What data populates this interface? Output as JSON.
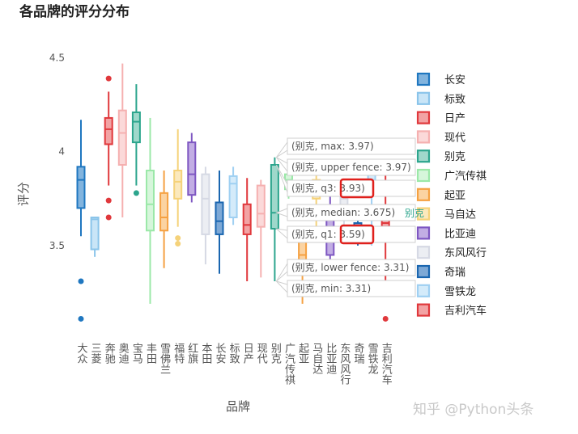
{
  "chart_data": {
    "type": "box",
    "title": "各品牌的评分分布",
    "xlabel": "品牌",
    "ylabel": "评分",
    "ylim": [
      3.0,
      4.55
    ],
    "yticks": [
      3.5,
      4,
      4.5
    ],
    "ytick_labels": [
      "3.5",
      "4",
      "4.5"
    ],
    "categories": [
      "大众",
      "三菱",
      "奔驰",
      "奥迪",
      "宝马",
      "丰田",
      "雪佛兰",
      "福特",
      "红旗",
      "本田",
      "长安",
      "标致",
      "日产",
      "现代",
      "别克",
      "广汽传祺",
      "起亚",
      "马自达",
      "比亚迪",
      "东风风行",
      "奇瑞",
      "雪铁龙",
      "吉利汽车"
    ],
    "series": [
      {
        "name": "长安",
        "color": "#1f77c0",
        "fill": "#82b4de",
        "x": 0,
        "min": 3.55,
        "q1": 3.7,
        "median": 3.85,
        "q3": 3.92,
        "max": 4.17,
        "outliers": [
          3.31,
          3.11
        ]
      },
      {
        "name": "标致",
        "color": "#8ac4ea",
        "fill": "#c9e5f7",
        "x": 1,
        "min": 3.44,
        "q1": 3.48,
        "median": 3.64,
        "q3": 3.65,
        "max": 3.65,
        "outliers": []
      },
      {
        "name": "日产",
        "color": "#e0383c",
        "fill": "#f2a3a4",
        "x": 2,
        "min": 3.82,
        "q1": 4.04,
        "median": 4.12,
        "q3": 4.18,
        "max": 4.32,
        "outliers": [
          4.39,
          3.74,
          3.65
        ]
      },
      {
        "name": "现代",
        "color": "#f5b0b0",
        "fill": "#fbd9d9",
        "x": 3,
        "min": 3.65,
        "q1": 3.93,
        "median": 4.1,
        "q3": 4.22,
        "max": 4.47,
        "outliers": []
      },
      {
        "name": "别克",
        "color": "#2ca58d",
        "fill": "#9fd8cb",
        "x": 4,
        "min": 3.82,
        "q1": 4.05,
        "median": 4.16,
        "q3": 4.21,
        "max": 4.36,
        "outliers": [
          3.78
        ]
      },
      {
        "name": "广汽传祺",
        "color": "#9be8a8",
        "fill": "#d6f6db",
        "x": 5,
        "min": 3.19,
        "q1": 3.58,
        "median": 3.72,
        "q3": 3.9,
        "max": 4.18,
        "outliers": []
      },
      {
        "name": "起亚",
        "color": "#f5a142",
        "fill": "#fbd3a2",
        "x": 6,
        "min": 3.38,
        "q1": 3.58,
        "median": 3.65,
        "q3": 3.78,
        "max": 3.9,
        "outliers": []
      },
      {
        "name": "马自达",
        "color": "#f5d27a",
        "fill": "#fbe9bd",
        "x": 7,
        "min": 3.6,
        "q1": 3.75,
        "median": 3.84,
        "q3": 3.9,
        "max": 4.12,
        "outliers": [
          3.54,
          3.51
        ]
      },
      {
        "name": "比亚迪",
        "color": "#7e57c2",
        "fill": "#c2ade4",
        "x": 8,
        "min": 3.73,
        "q1": 3.77,
        "median": 3.88,
        "q3": 4.05,
        "max": 4.1,
        "outliers": []
      },
      {
        "name": "东风风行",
        "color": "#d6d9e4",
        "fill": "#eceef3",
        "x": 9,
        "min": 3.4,
        "q1": 3.56,
        "median": 3.75,
        "q3": 3.88,
        "max": 3.92,
        "outliers": []
      },
      {
        "name": "奇瑞",
        "color": "#1a66b0",
        "fill": "#7ea9d6",
        "x": 10,
        "min": 3.35,
        "q1": 3.56,
        "median": 3.63,
        "q3": 3.73,
        "max": 3.9,
        "outliers": []
      },
      {
        "name": "雪铁龙",
        "color": "#9fd0f2",
        "fill": "#d4ebfa",
        "x": 11,
        "min": 3.61,
        "q1": 3.65,
        "median": 3.83,
        "q3": 3.87,
        "max": 3.92,
        "outliers": []
      },
      {
        "name": "吉利汽车",
        "color": "#e0383c",
        "fill": "#f2a3a4",
        "x": 12,
        "min": 3.31,
        "q1": 3.56,
        "median": 3.61,
        "q3": 3.72,
        "max": 3.86,
        "outliers": []
      },
      {
        "name": "",
        "color": "#f5b0b0",
        "fill": "#fbd9d9",
        "x": 13,
        "min": 3.33,
        "q1": 3.6,
        "median": 3.67,
        "q3": 3.82,
        "max": 3.85,
        "outliers": []
      },
      {
        "name": "",
        "color": "#2ca58d",
        "fill": "#9fd8cb",
        "x": 14,
        "min": 3.31,
        "q1": 3.59,
        "median": 3.675,
        "q3": 3.93,
        "max": 3.97,
        "outliers": []
      },
      {
        "name": "",
        "color": "#9be8a8",
        "fill": "#d6f6db",
        "x": 15,
        "min": 3.75,
        "q1": 3.8,
        "median": 3.85,
        "q3": 3.88,
        "max": 3.9,
        "outliers": []
      },
      {
        "name": "",
        "color": "#f5a142",
        "fill": "#fbd3a2",
        "x": 16,
        "min": 3.19,
        "q1": 3.4,
        "median": 3.45,
        "q3": 3.52,
        "max": 3.6,
        "outliers": []
      },
      {
        "name": "",
        "color": "#f5d27a",
        "fill": "#fbe9bd",
        "x": 17,
        "min": 3.6,
        "q1": 3.75,
        "median": 3.8,
        "q3": 3.85,
        "max": 3.9,
        "outliers": []
      },
      {
        "name": "",
        "color": "#7e57c2",
        "fill": "#c2ade4",
        "x": 18,
        "min": 3.4,
        "q1": 3.45,
        "median": 3.6,
        "q3": 3.7,
        "max": 3.8,
        "outliers": []
      },
      {
        "name": "",
        "color": "#d6d9e4",
        "fill": "#eceef3",
        "x": 19,
        "min": 3.6,
        "q1": 3.7,
        "median": 3.75,
        "q3": 3.8,
        "max": 3.85,
        "outliers": []
      },
      {
        "name": "",
        "color": "#1a66b0",
        "fill": "#7ea9d6",
        "x": 20,
        "min": 3.5,
        "q1": 3.56,
        "median": 3.6,
        "q3": 3.62,
        "max": 3.7,
        "outliers": []
      },
      {
        "name": "",
        "color": "#9fd0f2",
        "fill": "#d4ebfa",
        "x": 21,
        "min": 3.5,
        "q1": 3.8,
        "median": 3.85,
        "q3": 3.9,
        "max": 3.95,
        "outliers": []
      },
      {
        "name": "",
        "color": "#e0383c",
        "fill": "#f2a3a4",
        "x": 22,
        "min": 3.3,
        "q1": 3.56,
        "median": 3.62,
        "q3": 3.68,
        "max": 3.92,
        "outliers": [
          3.11
        ]
      }
    ],
    "legend": {
      "placement": "right",
      "items": [
        {
          "label": "长安",
          "color": "#1f77c0",
          "fill": "#82b4de"
        },
        {
          "label": "标致",
          "color": "#8ac4ea",
          "fill": "#c9e5f7"
        },
        {
          "label": "日产",
          "color": "#e0383c",
          "fill": "#f2a3a4"
        },
        {
          "label": "现代",
          "color": "#f5b0b0",
          "fill": "#fbd9d9"
        },
        {
          "label": "别克",
          "color": "#2ca58d",
          "fill": "#9fd8cb"
        },
        {
          "label": "广汽传祺",
          "color": "#9be8a8",
          "fill": "#d6f6db"
        },
        {
          "label": "起亚",
          "color": "#f5a142",
          "fill": "#fbd3a2"
        },
        {
          "label": "马自达",
          "color": "#f5d27a",
          "fill": "#fbe9bd"
        },
        {
          "label": "比亚迪",
          "color": "#7e57c2",
          "fill": "#c2ade4"
        },
        {
          "label": "东风风行",
          "color": "#d6d9e4",
          "fill": "#eceef3"
        },
        {
          "label": "奇瑞",
          "color": "#1a66b0",
          "fill": "#7ea9d6"
        },
        {
          "label": "雪铁龙",
          "color": "#9fd0f2",
          "fill": "#d4ebfa"
        },
        {
          "label": "吉利汽车",
          "color": "#e0383c",
          "fill": "#f2a3a4"
        }
      ]
    },
    "hover": {
      "tooltips": [
        {
          "text": "(别克, max: 3.97)",
          "value": 3.97
        },
        {
          "text": "(别克, upper fence: 3.97)",
          "value": 3.97
        },
        {
          "text": "(别克, q3: 3.93)",
          "value": 3.93
        },
        {
          "text": "(别克, median: 3.675)",
          "value": 3.675
        },
        {
          "text": "(别克, q1: 3.59)",
          "value": 3.59
        },
        {
          "text": "(别克, lower fence: 3.31)",
          "value": 3.31
        },
        {
          "text": "(别克, min: 3.31)",
          "value": 3.31
        }
      ],
      "trace_label": "别克",
      "trace_color": "#2ca58d",
      "highlight_color": "#e0201c",
      "highlighted_values": [
        "3.93",
        "3.59"
      ]
    },
    "grid": false
  },
  "watermark": "知乎 @Python头条"
}
